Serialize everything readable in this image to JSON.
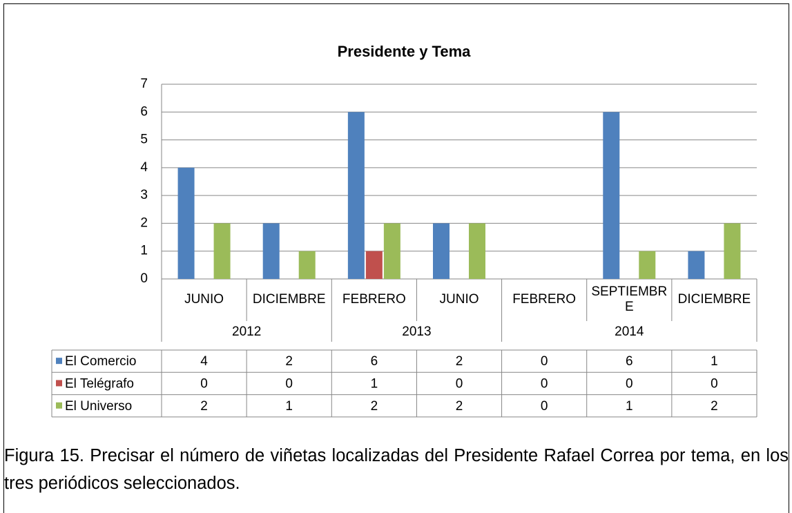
{
  "chart_data": {
    "type": "bar",
    "title": "Presidente y Tema",
    "groups": [
      {
        "name": "2012",
        "categories": [
          "JUNIO",
          "DICIEMBRE"
        ]
      },
      {
        "name": "2013",
        "categories": [
          "FEBRERO",
          "JUNIO"
        ]
      },
      {
        "name": "2014",
        "categories": [
          "FEBRERO",
          "SEPTIEMBRE",
          "DICIEMBRE"
        ]
      }
    ],
    "series": [
      {
        "name": "El Comercio",
        "color": "#4f81bd",
        "values": [
          4,
          2,
          6,
          2,
          0,
          6,
          1
        ]
      },
      {
        "name": "El Telégrafo",
        "color": "#c0504d",
        "values": [
          0,
          0,
          1,
          0,
          0,
          0,
          0
        ]
      },
      {
        "name": "El Universo",
        "color": "#9bbb59",
        "values": [
          2,
          1,
          2,
          2,
          0,
          1,
          2
        ]
      }
    ],
    "ylim": [
      0,
      7
    ],
    "yticks": [
      0,
      1,
      2,
      3,
      4,
      5,
      6,
      7
    ],
    "grid": true,
    "data_table": true
  },
  "caption": "Figura 15. Precisar el número de viñetas localizadas del Presidente Rafael Correa por tema, en los tres periódicos seleccionados."
}
